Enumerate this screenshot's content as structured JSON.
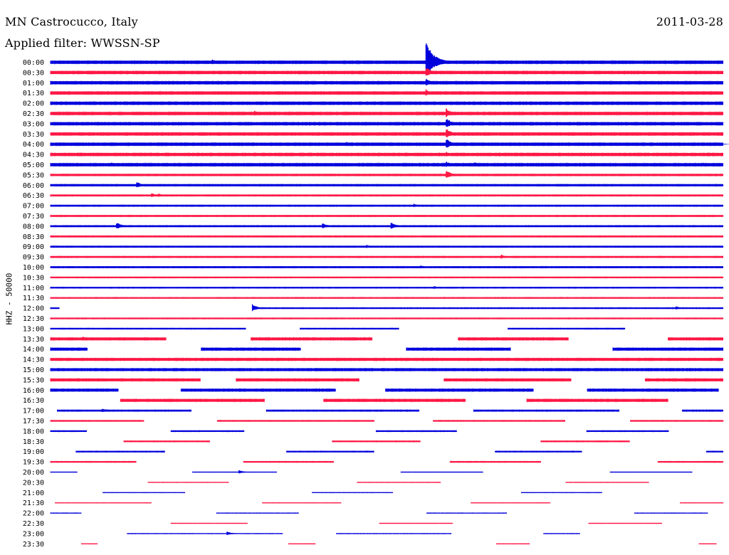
{
  "header": {
    "station": "MN Castrocucco, Italy",
    "filter": "Applied filter: WWSSN-SP",
    "date": "2011-03-28"
  },
  "axis_label": "HHZ - 50000",
  "colors": {
    "even_row": "#0000dd",
    "odd_row": "#ff1744",
    "background": "#ffffff"
  },
  "chart_data": {
    "type": "line",
    "title": "MN Castrocucco, Italy",
    "subtitle": "Applied filter: WWSSN-SP",
    "date": "2011-03-28",
    "ylabel": "HHZ - 50000",
    "row_interval_minutes": 30,
    "x_minutes_per_row": [
      0,
      30
    ],
    "rows": [
      {
        "label": "00:00",
        "segments": [
          [
            0,
            1
          ]
        ],
        "amp": 1.0,
        "events": [
          {
            "t": 0.24,
            "a": 2.2
          },
          {
            "t": 0.558,
            "a": 14.0
          }
        ]
      },
      {
        "label": "00:30",
        "segments": [
          [
            0,
            1
          ]
        ],
        "amp": 1.0,
        "events": [
          {
            "t": 0.558,
            "a": 4.0
          }
        ]
      },
      {
        "label": "01:00",
        "segments": [
          [
            0,
            1
          ]
        ],
        "amp": 1.0,
        "events": [
          {
            "t": 0.558,
            "a": 3.0
          }
        ]
      },
      {
        "label": "01:30",
        "segments": [
          [
            0,
            1
          ]
        ],
        "amp": 1.0,
        "events": [
          {
            "t": 0.558,
            "a": 2.5
          }
        ]
      },
      {
        "label": "02:00",
        "segments": [
          [
            0,
            1
          ]
        ],
        "amp": 1.0,
        "events": []
      },
      {
        "label": "02:30",
        "segments": [
          [
            0,
            1
          ]
        ],
        "amp": 1.0,
        "events": [
          {
            "t": 0.303,
            "a": 2.0
          },
          {
            "t": 0.588,
            "a": 3.5
          }
        ]
      },
      {
        "label": "03:00",
        "segments": [
          [
            0,
            1
          ]
        ],
        "amp": 1.0,
        "events": [
          {
            "t": 0.588,
            "a": 4.0
          }
        ]
      },
      {
        "label": "03:30",
        "segments": [
          [
            0,
            1
          ]
        ],
        "amp": 1.0,
        "events": [
          {
            "t": 0.588,
            "a": 4.0
          }
        ]
      },
      {
        "label": "04:00",
        "segments": [
          [
            0,
            1
          ]
        ],
        "amp": 1.0,
        "events": [
          {
            "t": 0.44,
            "a": 1.6
          },
          {
            "t": 0.588,
            "a": 4.0
          },
          {
            "t": 0.99,
            "a": 1.6
          }
        ]
      },
      {
        "label": "04:30",
        "segments": [
          [
            0,
            1
          ]
        ],
        "amp": 1.0,
        "events": [
          {
            "t": 0.588,
            "a": 2.0
          }
        ]
      },
      {
        "label": "05:00",
        "segments": [
          [
            0,
            1
          ]
        ],
        "amp": 1.0,
        "events": [
          {
            "t": 0.09,
            "a": 1.6
          },
          {
            "t": 0.588,
            "a": 2.2
          },
          {
            "t": 0.63,
            "a": 1.8
          },
          {
            "t": 0.97,
            "a": 1.4
          }
        ]
      },
      {
        "label": "05:30",
        "segments": [
          [
            0,
            1
          ]
        ],
        "amp": 0.7,
        "events": [
          {
            "t": 0.588,
            "a": 3.5
          }
        ]
      },
      {
        "label": "06:00",
        "segments": [
          [
            0,
            1
          ]
        ],
        "amp": 0.7,
        "events": [
          {
            "t": 0.128,
            "a": 2.5
          }
        ]
      },
      {
        "label": "06:30",
        "segments": [
          [
            0,
            1
          ]
        ],
        "amp": 0.6,
        "events": [
          {
            "t": 0.15,
            "a": 1.8
          },
          {
            "t": 0.16,
            "a": 1.4
          }
        ]
      },
      {
        "label": "07:00",
        "segments": [
          [
            0,
            1
          ]
        ],
        "amp": 0.6,
        "events": [
          {
            "t": 0.54,
            "a": 1.4
          }
        ]
      },
      {
        "label": "07:30",
        "segments": [
          [
            0,
            1
          ]
        ],
        "amp": 0.6,
        "events": []
      },
      {
        "label": "08:00",
        "segments": [
          [
            0,
            1
          ]
        ],
        "amp": 0.6,
        "events": [
          {
            "t": 0.098,
            "a": 2.8
          },
          {
            "t": 0.404,
            "a": 2.4
          },
          {
            "t": 0.506,
            "a": 2.6
          }
        ]
      },
      {
        "label": "08:30",
        "segments": [
          [
            0,
            1
          ]
        ],
        "amp": 0.6,
        "events": []
      },
      {
        "label": "09:00",
        "segments": [
          [
            0,
            1
          ]
        ],
        "amp": 0.6,
        "events": [
          {
            "t": 0.47,
            "a": 1.3
          }
        ]
      },
      {
        "label": "09:30",
        "segments": [
          [
            0,
            1
          ]
        ],
        "amp": 0.6,
        "events": [
          {
            "t": 0.67,
            "a": 1.6
          }
        ]
      },
      {
        "label": "10:00",
        "segments": [
          [
            0,
            1
          ]
        ],
        "amp": 0.6,
        "events": [
          {
            "t": 0.55,
            "a": 1.3
          }
        ]
      },
      {
        "label": "10:30",
        "segments": [
          [
            0,
            1
          ]
        ],
        "amp": 0.5,
        "events": []
      },
      {
        "label": "11:00",
        "segments": [
          [
            0,
            1
          ]
        ],
        "amp": 0.5,
        "events": [
          {
            "t": 0.57,
            "a": 1.3
          }
        ]
      },
      {
        "label": "11:30",
        "segments": [
          [
            0,
            1
          ]
        ],
        "amp": 0.5,
        "events": []
      },
      {
        "label": "12:00",
        "segments": [
          [
            0,
            0.013
          ],
          [
            0.3,
            1
          ]
        ],
        "amp": 0.5,
        "events": [
          {
            "t": 0.3,
            "a": 2.8
          },
          {
            "t": 0.93,
            "a": 1.3
          }
        ]
      },
      {
        "label": "12:30",
        "segments": [
          [
            0,
            1
          ]
        ],
        "amp": 0.5,
        "events": []
      },
      {
        "label": "13:00",
        "segments": [
          [
            0,
            0.29
          ],
          [
            0.371,
            0.518
          ],
          [
            0.68,
            0.854
          ]
        ],
        "amp": 0.5,
        "events": []
      },
      {
        "label": "13:30",
        "segments": [
          [
            0,
            0.172
          ],
          [
            0.298,
            0.478
          ],
          [
            0.606,
            0.77
          ],
          [
            0.918,
            1
          ]
        ],
        "amp": 0.9,
        "events": [
          {
            "t": 0.048,
            "a": 1.8
          },
          {
            "t": 0.663,
            "a": 1.4
          }
        ]
      },
      {
        "label": "14:00",
        "segments": [
          [
            0,
            0.055
          ],
          [
            0.224,
            0.372
          ],
          [
            0.529,
            0.684
          ],
          [
            0.836,
            1
          ]
        ],
        "amp": 0.9,
        "events": []
      },
      {
        "label": "14:30",
        "segments": [
          [
            0,
            1
          ]
        ],
        "amp": 0.9,
        "events": []
      },
      {
        "label": "15:00",
        "segments": [
          [
            0,
            1
          ]
        ],
        "amp": 0.9,
        "events": []
      },
      {
        "label": "15:30",
        "segments": [
          [
            0,
            0.223
          ],
          [
            0.276,
            0.459
          ],
          [
            0.585,
            0.774
          ],
          [
            0.884,
            1
          ]
        ],
        "amp": 0.9,
        "events": []
      },
      {
        "label": "16:00",
        "segments": [
          [
            0,
            0.101
          ],
          [
            0.194,
            0.424
          ],
          [
            0.498,
            0.718
          ],
          [
            0.798,
            0.993
          ]
        ],
        "amp": 0.9,
        "events": []
      },
      {
        "label": "16:30",
        "segments": [
          [
            0.104,
            0.318
          ],
          [
            0.406,
            0.617
          ],
          [
            0.708,
            0.918
          ]
        ],
        "amp": 0.9,
        "events": []
      },
      {
        "label": "17:00",
        "segments": [
          [
            0.01,
            0.209
          ],
          [
            0.321,
            0.548
          ],
          [
            0.629,
            0.845
          ],
          [
            0.939,
            1
          ]
        ],
        "amp": 0.6,
        "events": [
          {
            "t": 0.077,
            "a": 1.8
          }
        ]
      },
      {
        "label": "17:30",
        "segments": [
          [
            0,
            0.139
          ],
          [
            0.248,
            0.481
          ],
          [
            0.569,
            0.765
          ],
          [
            0.862,
            1
          ]
        ],
        "amp": 0.5,
        "events": []
      },
      {
        "label": "18:00",
        "segments": [
          [
            0,
            0.054
          ],
          [
            0.179,
            0.288
          ],
          [
            0.484,
            0.604
          ],
          [
            0.797,
            0.919
          ]
        ],
        "amp": 0.5,
        "events": []
      },
      {
        "label": "18:30",
        "segments": [
          [
            0.109,
            0.237
          ],
          [
            0.419,
            0.55
          ],
          [
            0.729,
            0.861
          ]
        ],
        "amp": 0.5,
        "events": []
      },
      {
        "label": "19:00",
        "segments": [
          [
            0.038,
            0.17
          ],
          [
            0.351,
            0.481
          ],
          [
            0.661,
            0.79
          ],
          [
            0.975,
            1
          ]
        ],
        "amp": 0.5,
        "events": []
      },
      {
        "label": "19:30",
        "segments": [
          [
            0,
            0.127
          ],
          [
            0.287,
            0.421
          ],
          [
            0.594,
            0.729
          ],
          [
            0.903,
            1
          ]
        ],
        "amp": 0.5,
        "events": []
      },
      {
        "label": "20:00",
        "segments": [
          [
            0,
            0.04
          ],
          [
            0.211,
            0.336
          ],
          [
            0.521,
            0.643
          ],
          [
            0.832,
            0.954
          ]
        ],
        "amp": 0.3,
        "events": [
          {
            "t": 0.28,
            "a": 1.4
          }
        ]
      },
      {
        "label": "20:30",
        "segments": [
          [
            0.145,
            0.265
          ],
          [
            0.456,
            0.58
          ],
          [
            0.766,
            0.889
          ]
        ],
        "amp": 0.3,
        "events": []
      },
      {
        "label": "21:00",
        "segments": [
          [
            0.078,
            0.2
          ],
          [
            0.389,
            0.509
          ],
          [
            0.7,
            0.82
          ]
        ],
        "amp": 0.3,
        "events": []
      },
      {
        "label": "21:30",
        "segments": [
          [
            0.007,
            0.15
          ],
          [
            0.315,
            0.432
          ],
          [
            0.625,
            0.743
          ],
          [
            0.936,
            1
          ]
        ],
        "amp": 0.3,
        "events": []
      },
      {
        "label": "22:00",
        "segments": [
          [
            0,
            0.046
          ],
          [
            0.247,
            0.369
          ],
          [
            0.559,
            0.678
          ],
          [
            0.868,
            0.977
          ]
        ],
        "amp": 0.3,
        "events": []
      },
      {
        "label": "22:30",
        "segments": [
          [
            0.179,
            0.293
          ],
          [
            0.489,
            0.598
          ],
          [
            0.8,
            0.909
          ]
        ],
        "amp": 0.3,
        "events": []
      },
      {
        "label": "23:00",
        "segments": [
          [
            0.114,
            0.345
          ],
          [
            0.425,
            0.596
          ],
          [
            0.733,
            0.787
          ]
        ],
        "amp": 0.3,
        "events": [
          {
            "t": 0.262,
            "a": 1.6
          }
        ]
      },
      {
        "label": "23:30",
        "segments": [
          [
            0.046,
            0.07
          ],
          [
            0.354,
            0.394
          ],
          [
            0.663,
            0.712
          ],
          [
            0.964,
            0.99
          ]
        ],
        "amp": 0.3,
        "events": []
      }
    ]
  }
}
